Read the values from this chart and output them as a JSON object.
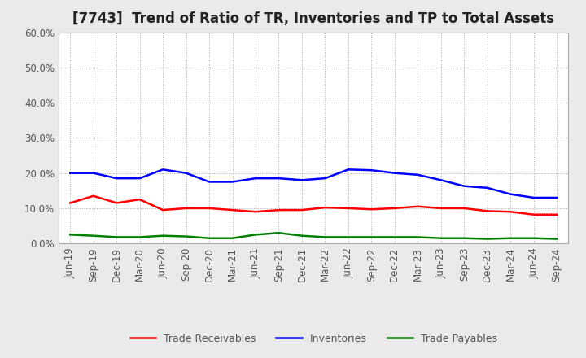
{
  "title": "[7743]  Trend of Ratio of TR, Inventories and TP to Total Assets",
  "x_labels": [
    "Jun-19",
    "Sep-19",
    "Dec-19",
    "Mar-20",
    "Jun-20",
    "Sep-20",
    "Dec-20",
    "Mar-21",
    "Jun-21",
    "Sep-21",
    "Dec-21",
    "Mar-22",
    "Jun-22",
    "Sep-22",
    "Dec-22",
    "Mar-23",
    "Jun-23",
    "Sep-23",
    "Dec-23",
    "Mar-24",
    "Jun-24",
    "Sep-24"
  ],
  "trade_receivables": [
    0.115,
    0.135,
    0.115,
    0.125,
    0.095,
    0.1,
    0.1,
    0.095,
    0.09,
    0.095,
    0.095,
    0.102,
    0.1,
    0.097,
    0.1,
    0.105,
    0.1,
    0.1,
    0.092,
    0.09,
    0.082,
    0.082
  ],
  "inventories": [
    0.2,
    0.2,
    0.185,
    0.185,
    0.21,
    0.2,
    0.175,
    0.175,
    0.185,
    0.185,
    0.18,
    0.185,
    0.21,
    0.208,
    0.2,
    0.195,
    0.18,
    0.163,
    0.158,
    0.14,
    0.13,
    0.13
  ],
  "trade_payables": [
    0.025,
    0.022,
    0.018,
    0.018,
    0.022,
    0.02,
    0.015,
    0.015,
    0.025,
    0.03,
    0.022,
    0.018,
    0.018,
    0.018,
    0.018,
    0.018,
    0.015,
    0.015,
    0.013,
    0.015,
    0.015,
    0.013
  ],
  "tr_color": "#FF0000",
  "inv_color": "#0000FF",
  "tp_color": "#008000",
  "ylim": [
    0.0,
    0.6
  ],
  "yticks": [
    0.0,
    0.1,
    0.2,
    0.3,
    0.4,
    0.5,
    0.6
  ],
  "legend_labels": [
    "Trade Receivables",
    "Inventories",
    "Trade Payables"
  ],
  "figure_facecolor": "#EAEAEA",
  "plot_facecolor": "#FFFFFF",
  "grid_color": "#AAAAAA",
  "title_fontsize": 12,
  "tick_fontsize": 8.5,
  "legend_fontsize": 9,
  "linewidth": 1.8
}
